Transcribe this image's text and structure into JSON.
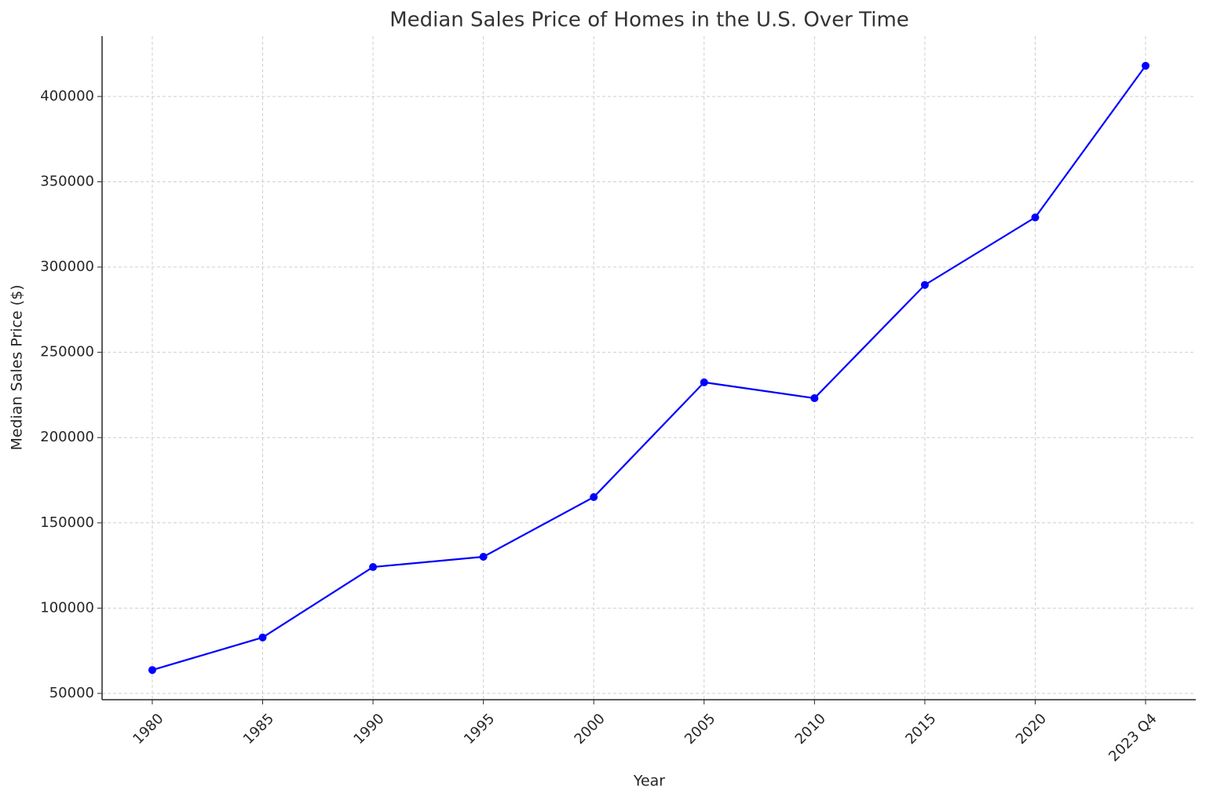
{
  "chart_data": {
    "type": "line",
    "title": "Median Sales Price of Homes in the U.S. Over Time",
    "x_label": "Year",
    "y_label": "Median Sales Price ($)",
    "categories": [
      "1980",
      "1985",
      "1990",
      "1995",
      "2000",
      "2005",
      "2010",
      "2015",
      "2020",
      "2023 Q4"
    ],
    "series": [
      {
        "name": "Median Sales Price",
        "color": "#0000ff",
        "values": [
          63700,
          82800,
          124100,
          130100,
          165100,
          232400,
          223100,
          289500,
          329100,
          418000
        ]
      }
    ],
    "ylim": [
      46300,
      435400
    ],
    "yticks": [
      50000,
      100000,
      150000,
      200000,
      250000,
      300000,
      350000,
      400000
    ],
    "grid": true
  }
}
